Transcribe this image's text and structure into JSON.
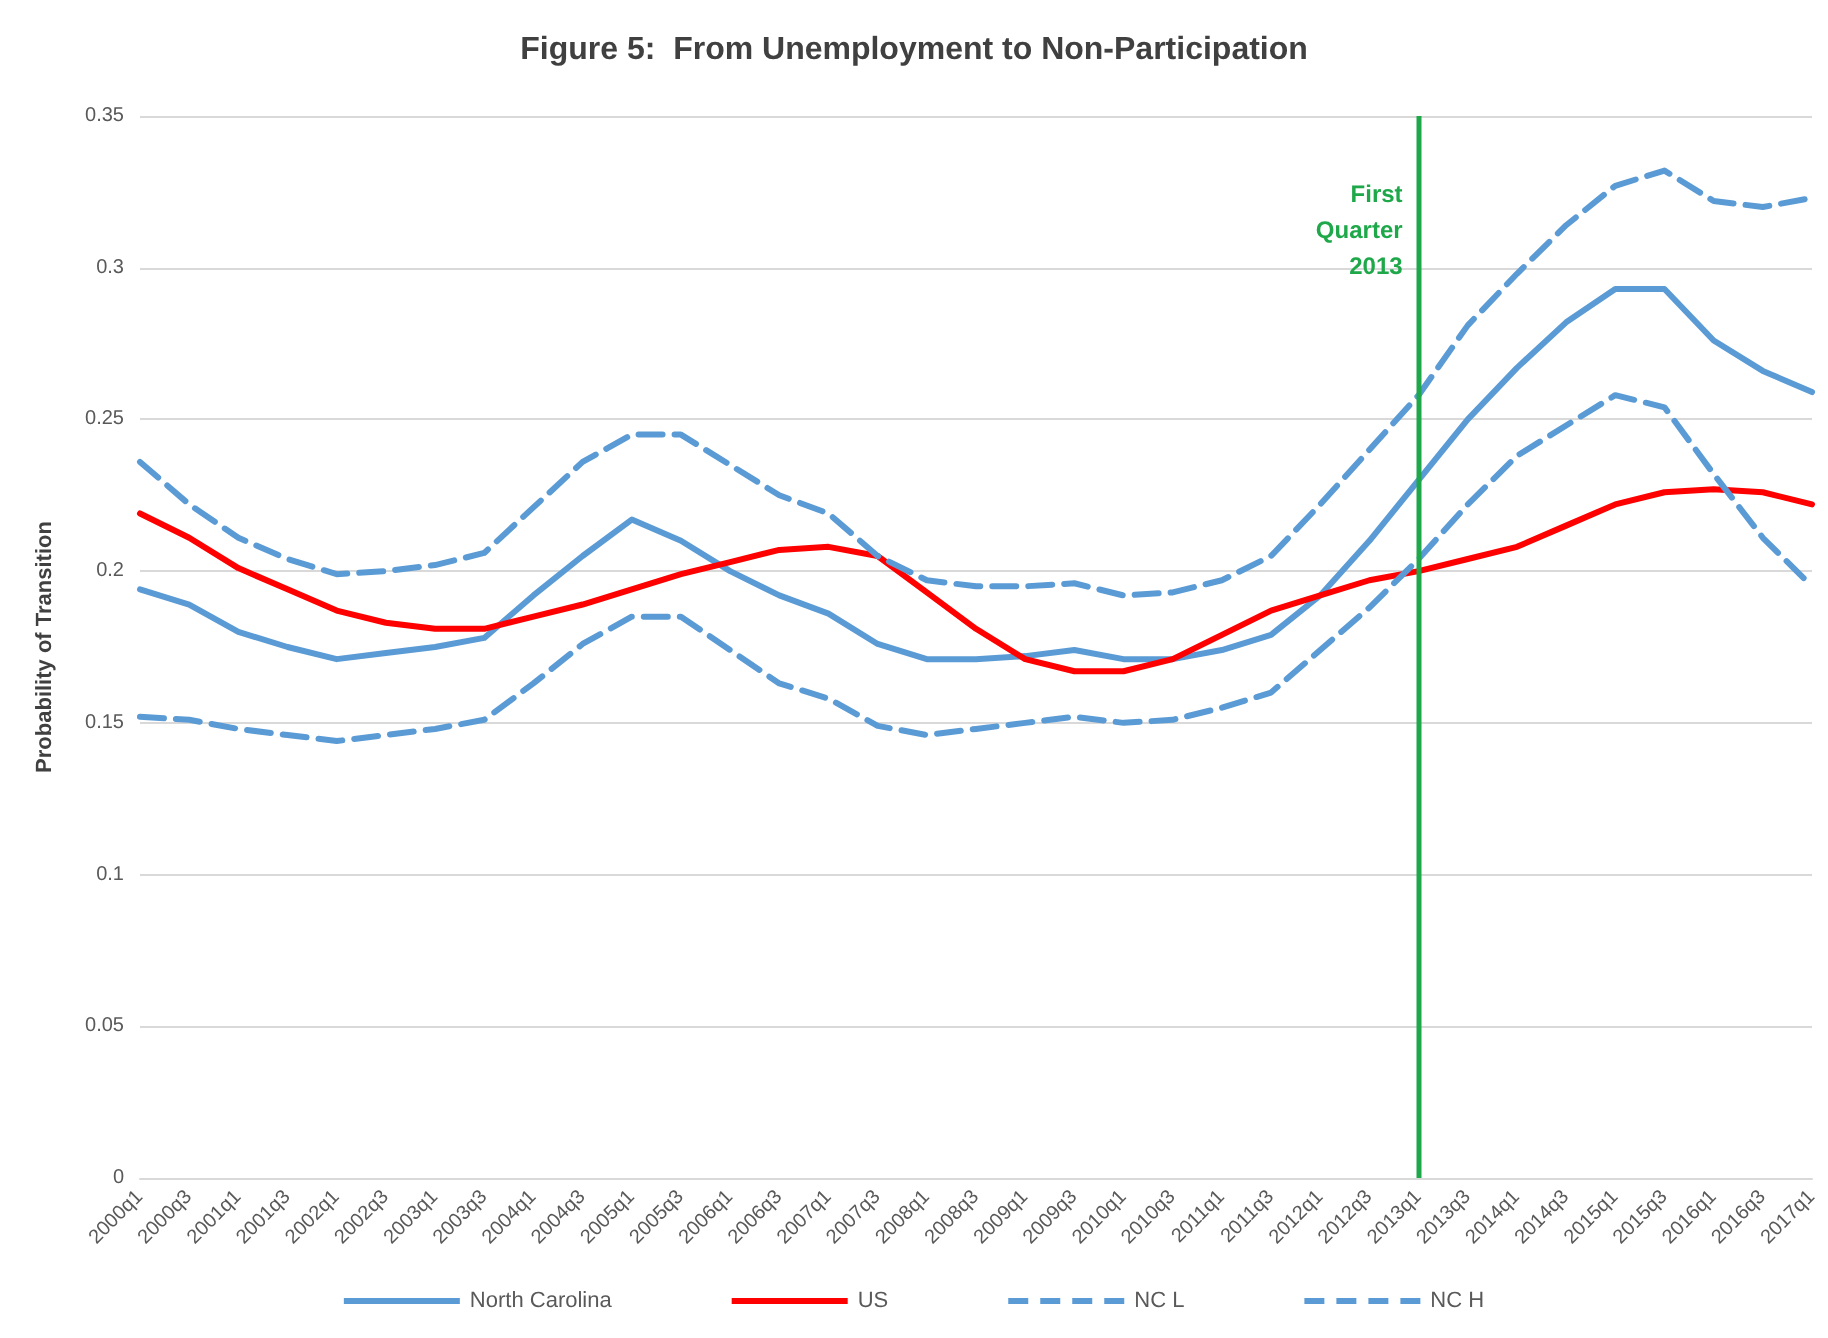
{
  "chart_data": {
    "type": "line",
    "title": "Figure 5:  From Unemployment to Non-Participation",
    "ylabel": "Probability of Transition",
    "categories": [
      "2000q1",
      "2000q3",
      "2001q1",
      "2001q3",
      "2002q1",
      "2002q3",
      "2003q1",
      "2003q3",
      "2004q1",
      "2004q3",
      "2005q1",
      "2005q3",
      "2006q1",
      "2006q3",
      "2007q1",
      "2007q3",
      "2008q1",
      "2008q3",
      "2009q1",
      "2009q3",
      "2010q1",
      "2010q3",
      "2011q1",
      "2011q3",
      "2012q1",
      "2012q3",
      "2013q1",
      "2013q3",
      "2014q1",
      "2014q3",
      "2015q1",
      "2015q3",
      "2016q1",
      "2016q3",
      "2017q1"
    ],
    "series": [
      {
        "name": "North Carolina",
        "color": "#5b9bd5",
        "line_style": "solid",
        "values": [
          0.194,
          0.189,
          0.18,
          0.175,
          0.171,
          0.173,
          0.175,
          0.178,
          0.192,
          0.205,
          0.217,
          0.21,
          0.2,
          0.192,
          0.186,
          0.176,
          0.171,
          0.171,
          0.172,
          0.174,
          0.171,
          0.171,
          0.174,
          0.179,
          0.192,
          0.21,
          0.23,
          0.25,
          0.267,
          0.282,
          0.293,
          0.293,
          0.276,
          0.266,
          0.259
        ]
      },
      {
        "name": "US",
        "color": "#ff0000",
        "line_style": "solid",
        "values": [
          0.219,
          0.211,
          0.201,
          0.194,
          0.187,
          0.183,
          0.181,
          0.181,
          0.185,
          0.189,
          0.194,
          0.199,
          0.203,
          0.207,
          0.208,
          0.205,
          0.193,
          0.181,
          0.171,
          0.167,
          0.167,
          0.171,
          0.179,
          0.187,
          0.192,
          0.197,
          0.2,
          0.204,
          0.208,
          0.215,
          0.222,
          0.226,
          0.227,
          0.226,
          0.222
        ]
      },
      {
        "name": "NC L",
        "color": "#5b9bd5",
        "line_style": "dashed",
        "values": [
          0.152,
          0.151,
          0.148,
          0.146,
          0.144,
          0.146,
          0.148,
          0.151,
          0.163,
          0.176,
          0.185,
          0.185,
          0.174,
          0.163,
          0.158,
          0.149,
          0.146,
          0.148,
          0.15,
          0.152,
          0.15,
          0.151,
          0.155,
          0.16,
          0.174,
          0.188,
          0.204,
          0.222,
          0.238,
          0.248,
          0.258,
          0.254,
          0.232,
          0.211,
          0.195
        ]
      },
      {
        "name": "NC H",
        "color": "#5b9bd5",
        "line_style": "dashed",
        "values": [
          0.236,
          0.222,
          0.211,
          0.204,
          0.199,
          0.2,
          0.202,
          0.206,
          0.221,
          0.236,
          0.245,
          0.245,
          0.235,
          0.225,
          0.219,
          0.205,
          0.197,
          0.195,
          0.195,
          0.196,
          0.192,
          0.193,
          0.197,
          0.205,
          0.222,
          0.24,
          0.258,
          0.281,
          0.298,
          0.314,
          0.327,
          0.332,
          0.322,
          0.32,
          0.323
        ]
      }
    ],
    "ylim": [
      0,
      0.35
    ],
    "yticks": [
      0,
      0.05,
      0.1,
      0.15,
      0.2,
      0.25,
      0.3,
      0.35
    ],
    "ref_lines": [
      {
        "axis": "x",
        "value": "2013q1",
        "label": "First\nQuarter\n2013",
        "color": "#1fa84a"
      }
    ],
    "grid": "y",
    "legend": "bottom",
    "marker": "none"
  }
}
